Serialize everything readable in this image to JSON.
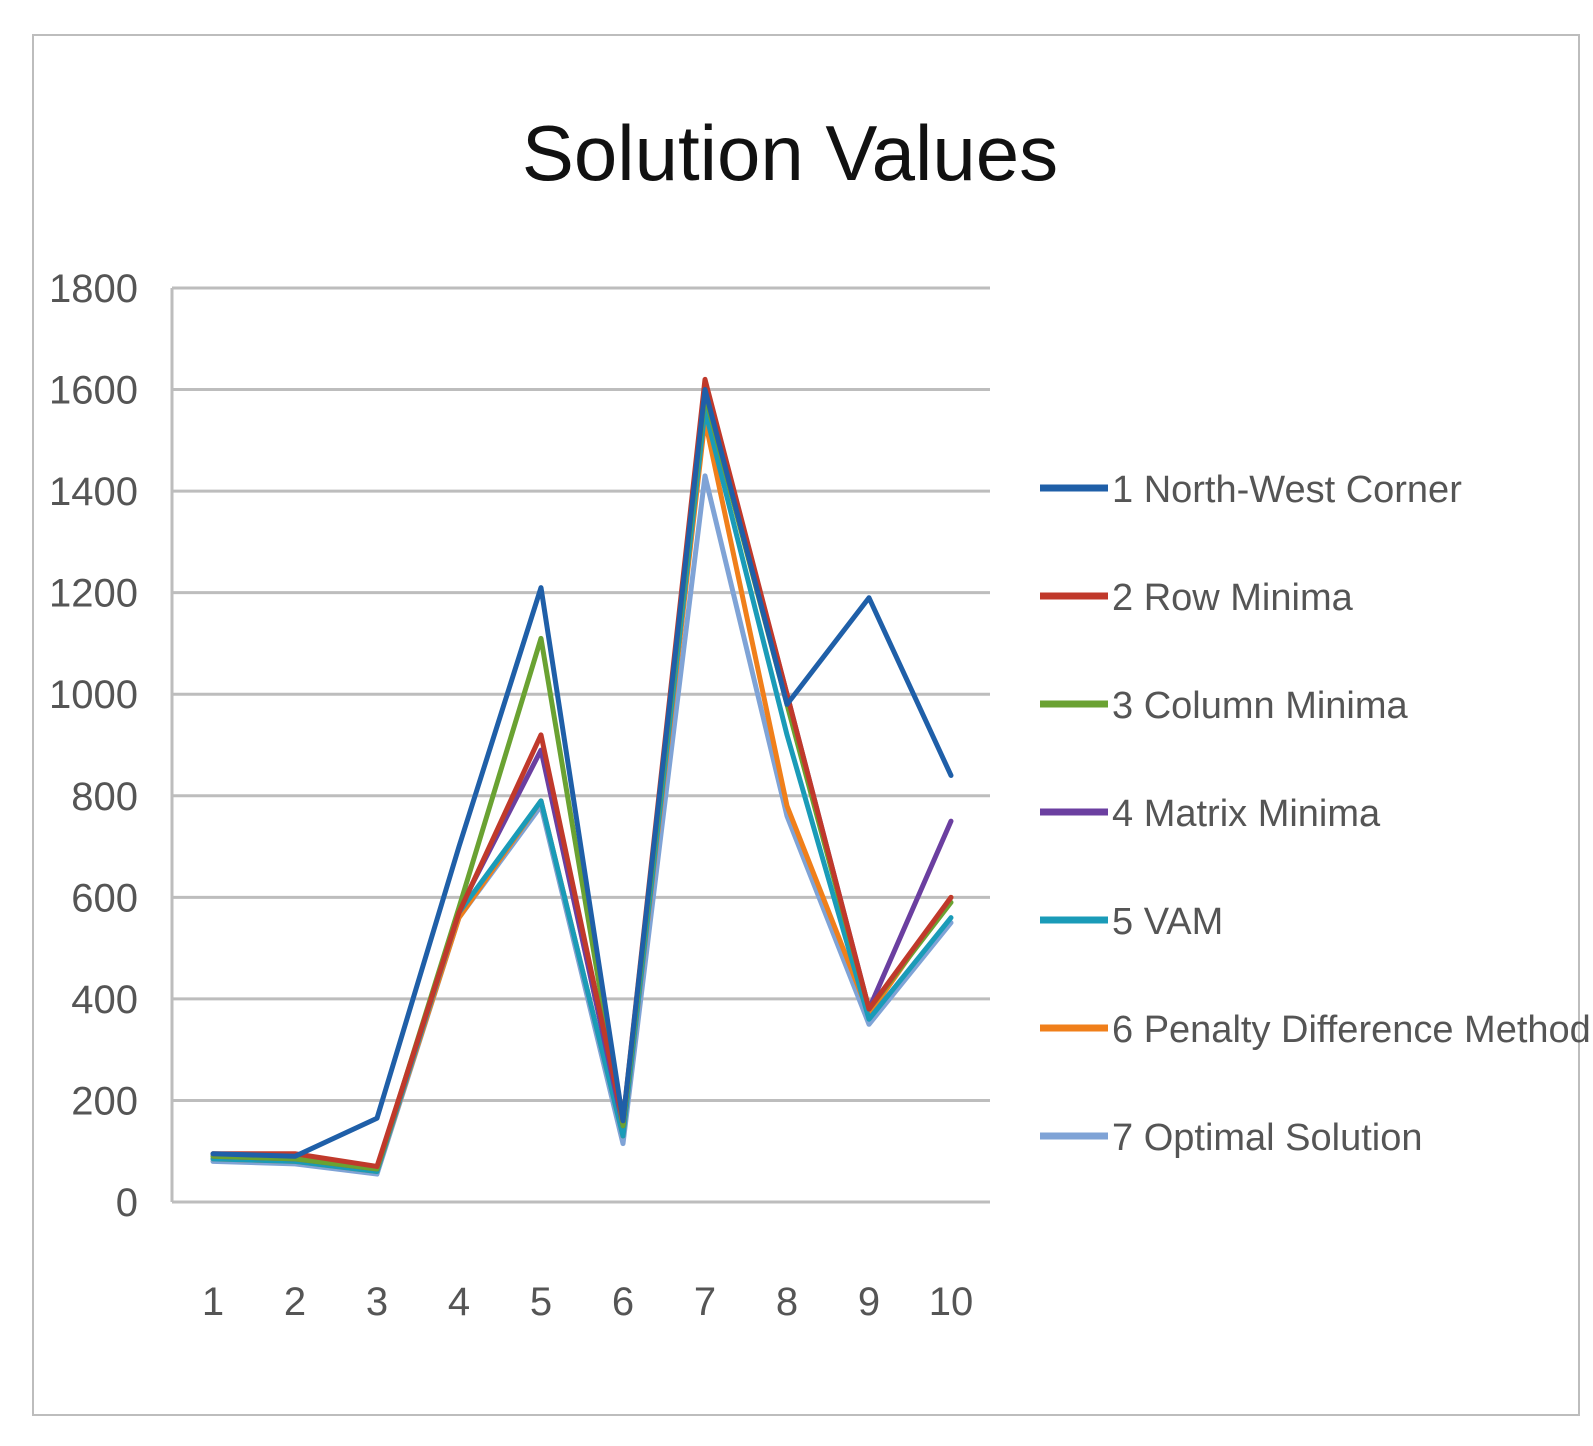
{
  "chart_data": {
    "type": "line",
    "title": "Solution Values",
    "xlabel": "",
    "ylabel": "",
    "x": [
      "1",
      "2",
      "3",
      "4",
      "5",
      "6",
      "7",
      "8",
      "9",
      "10"
    ],
    "ylim": [
      0,
      1800
    ],
    "yticks": [
      0,
      200,
      400,
      600,
      800,
      1000,
      1200,
      1400,
      1600,
      1800
    ],
    "grid": true,
    "legend_position": "right",
    "series": [
      {
        "name": "1 North-West Corner",
        "color": "#1f5fa8",
        "values": [
          95,
          90,
          165,
          700,
          1210,
          160,
          1600,
          980,
          1190,
          840
        ]
      },
      {
        "name": "2 Row Minima",
        "color": "#c0392b",
        "values": [
          95,
          95,
          70,
          570,
          920,
          160,
          1620,
          1000,
          380,
          600
        ]
      },
      {
        "name": "3 Column Minima",
        "color": "#6aa232",
        "values": [
          90,
          85,
          65,
          580,
          1110,
          150,
          1590,
          980,
          380,
          590
        ]
      },
      {
        "name": "4 Matrix Minima",
        "color": "#6b3fa0",
        "values": [
          90,
          85,
          65,
          575,
          890,
          150,
          1610,
          1000,
          380,
          750
        ]
      },
      {
        "name": "5 VAM",
        "color": "#1a9bb8",
        "values": [
          85,
          80,
          60,
          570,
          790,
          130,
          1560,
          920,
          360,
          560
        ]
      },
      {
        "name": "6 Penalty Difference Method",
        "color": "#f07f1a",
        "values": [
          85,
          80,
          60,
          560,
          790,
          130,
          1540,
          780,
          370,
          600
        ]
      },
      {
        "name": "7 Optimal Solution",
        "color": "#7fa3d6",
        "values": [
          80,
          75,
          55,
          560,
          780,
          115,
          1430,
          760,
          350,
          550
        ]
      }
    ]
  }
}
